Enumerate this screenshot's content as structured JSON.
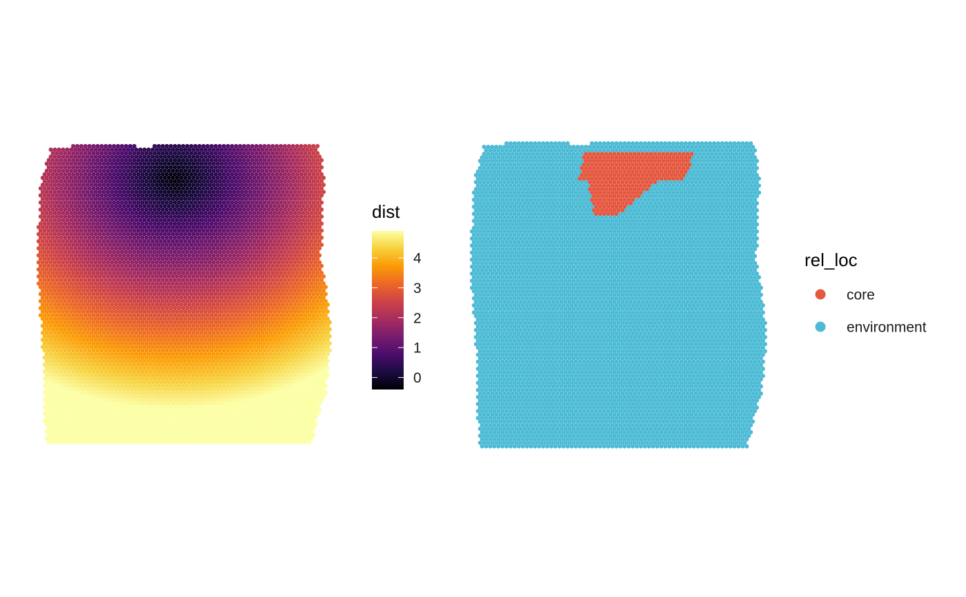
{
  "chart_data": [
    {
      "type": "scatter",
      "description_role": "spatial spot plot colored by continuous distance",
      "title": "",
      "xlabel": "",
      "ylabel": "",
      "grid": false,
      "color_variable": "dist",
      "colorbar": {
        "title": "dist",
        "palette": "inferno",
        "range": [
          -0.4,
          4.9
        ],
        "ticks": [
          0,
          1,
          2,
          3,
          4
        ],
        "tick_labels": [
          "0",
          "1",
          "2",
          "3",
          "4"
        ],
        "stops": [
          "#000004",
          "#1B0C41",
          "#4A0C6B",
          "#781C6D",
          "#A52C60",
          "#CF4446",
          "#ED6925",
          "#FB9B06",
          "#F7D13D",
          "#FCFFA4"
        ]
      },
      "legend_position": "right",
      "core_center": {
        "x": 0.47,
        "y": 0.11
      }
    },
    {
      "type": "scatter",
      "description_role": "spatial spot plot colored by relative location",
      "title": "",
      "xlabel": "",
      "ylabel": "",
      "grid": false,
      "color_variable": "rel_loc",
      "legend": {
        "title": "rel_loc",
        "entries": [
          {
            "label": "core",
            "color": "#E5573F"
          },
          {
            "label": "environment",
            "color": "#4DBBD5"
          }
        ]
      },
      "legend_position": "right"
    }
  ]
}
